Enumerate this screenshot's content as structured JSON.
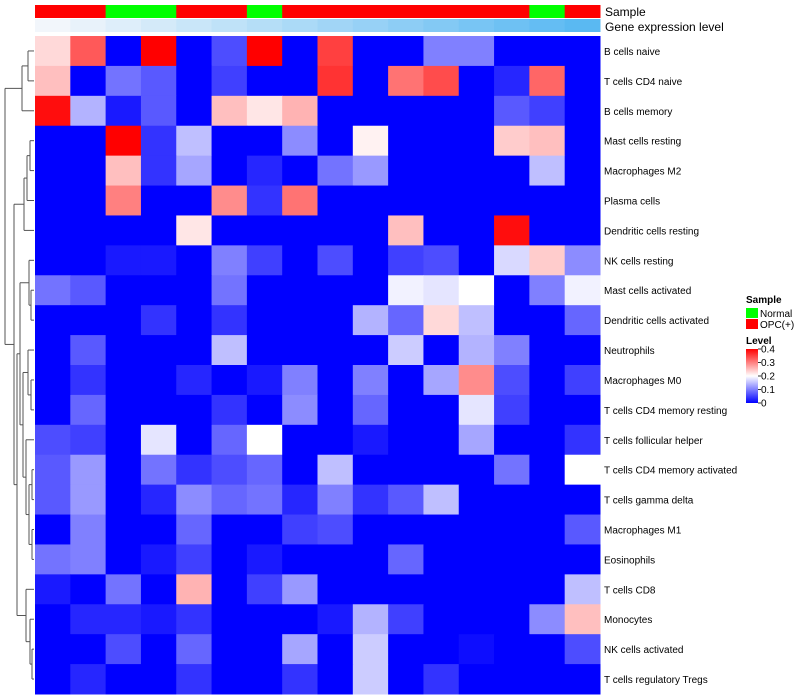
{
  "chart_data": {
    "type": "heatmap",
    "title": "",
    "annotation_labels": {
      "sample": "Sample",
      "gene_level": "Gene expression level"
    },
    "rows": [
      "B cells naive",
      "T cells CD4 naive",
      "B cells memory",
      "Mast cells resting",
      "Macrophages M2",
      "Plasma cells",
      "Dendritic cells resting",
      "NK cells resting",
      "Mast cells activated",
      "Dendritic cells activated",
      "Neutrophils",
      "Macrophages M0",
      "T cells CD4 memory resting",
      "T cells follicular helper",
      "T cells CD4 memory activated",
      "T cells gamma delta",
      "Macrophages M1",
      "Eosinophils",
      "T cells CD8",
      "Monocytes",
      "NK cells activated",
      "T cells regulatory  Tregs"
    ],
    "sample_groups": [
      "OPC(+)",
      "OPC(+)",
      "Normal",
      "Normal",
      "OPC(+)",
      "OPC(+)",
      "Normal",
      "OPC(+)",
      "OPC(+)",
      "OPC(+)",
      "OPC(+)",
      "OPC(+)",
      "OPC(+)",
      "OPC(+)",
      "Normal",
      "OPC(+)"
    ],
    "gene_expression_levels": [
      0.02,
      0.04,
      0.06,
      0.08,
      0.1,
      0.12,
      0.14,
      0.16,
      0.18,
      0.2,
      0.22,
      0.24,
      0.26,
      0.28,
      0.3,
      0.32
    ],
    "values": [
      [
        0.23,
        0.33,
        0.0,
        0.4,
        0.0,
        0.06,
        0.4,
        0.0,
        0.35,
        0.0,
        0.0,
        0.1,
        0.1,
        0.0,
        0.0,
        0.0
      ],
      [
        0.25,
        0.0,
        0.09,
        0.07,
        0.0,
        0.05,
        0.0,
        0.0,
        0.36,
        0.0,
        0.31,
        0.34,
        0.0,
        0.03,
        0.32,
        0.0
      ],
      [
        0.39,
        0.14,
        0.02,
        0.07,
        0.0,
        0.25,
        0.22,
        0.26,
        0.0,
        0.0,
        0.0,
        0.0,
        0.0,
        0.07,
        0.05,
        0.0
      ],
      [
        0.0,
        0.0,
        0.4,
        0.04,
        0.15,
        0.0,
        0.0,
        0.11,
        0.0,
        0.21,
        0.0,
        0.0,
        0.0,
        0.24,
        0.25,
        0.0
      ],
      [
        0.0,
        0.0,
        0.25,
        0.04,
        0.13,
        0.0,
        0.03,
        0.0,
        0.09,
        0.12,
        0.0,
        0.0,
        0.0,
        0.0,
        0.15,
        0.0
      ],
      [
        0.0,
        0.0,
        0.3,
        0.0,
        0.0,
        0.29,
        0.04,
        0.31,
        0.0,
        0.0,
        0.0,
        0.0,
        0.0,
        0.0,
        0.0,
        0.0
      ],
      [
        0.0,
        0.0,
        0.0,
        0.0,
        0.22,
        0.0,
        0.0,
        0.0,
        0.0,
        0.0,
        0.25,
        0.0,
        0.0,
        0.39,
        0.0,
        0.0
      ],
      [
        0.0,
        0.0,
        0.02,
        0.02,
        0.0,
        0.1,
        0.05,
        0.0,
        0.06,
        0.0,
        0.05,
        0.06,
        0.0,
        0.17,
        0.24,
        0.11
      ],
      [
        0.09,
        0.07,
        0.0,
        0.0,
        0.0,
        0.09,
        0.0,
        0.0,
        0.0,
        0.0,
        0.19,
        0.18,
        0.2,
        0.0,
        0.1,
        0.19
      ],
      [
        0.0,
        0.0,
        0.0,
        0.04,
        0.0,
        0.04,
        0.0,
        0.0,
        0.0,
        0.14,
        0.08,
        0.23,
        0.15,
        0.0,
        0.0,
        0.08
      ],
      [
        0.0,
        0.07,
        0.0,
        0.0,
        0.0,
        0.15,
        0.0,
        0.0,
        0.0,
        0.0,
        0.16,
        0.0,
        0.14,
        0.1,
        0.0,
        0.0
      ],
      [
        0.0,
        0.04,
        0.0,
        0.0,
        0.03,
        0.0,
        0.02,
        0.1,
        0.0,
        0.1,
        0.0,
        0.13,
        0.29,
        0.06,
        0.0,
        0.05
      ],
      [
        0.0,
        0.08,
        0.0,
        0.0,
        0.0,
        0.04,
        0.0,
        0.11,
        0.0,
        0.08,
        0.0,
        0.0,
        0.18,
        0.05,
        0.0,
        0.0
      ],
      [
        0.06,
        0.05,
        0.0,
        0.18,
        0.0,
        0.08,
        0.2,
        0.0,
        0.0,
        0.02,
        0.0,
        0.0,
        0.13,
        0.0,
        0.0,
        0.04
      ],
      [
        0.07,
        0.12,
        0.0,
        0.09,
        0.04,
        0.06,
        0.08,
        0.0,
        0.15,
        0.0,
        0.0,
        0.0,
        0.0,
        0.09,
        0.0,
        0.2
      ],
      [
        0.07,
        0.12,
        0.0,
        0.03,
        0.11,
        0.08,
        0.09,
        0.03,
        0.1,
        0.04,
        0.07,
        0.15,
        0.0,
        0.0,
        0.0,
        0.0
      ],
      [
        0.0,
        0.1,
        0.0,
        0.0,
        0.08,
        0.0,
        0.0,
        0.05,
        0.06,
        0.0,
        0.0,
        0.0,
        0.0,
        0.0,
        0.0,
        0.07
      ],
      [
        0.09,
        0.1,
        0.0,
        0.02,
        0.05,
        0.0,
        0.02,
        0.0,
        0.0,
        0.0,
        0.08,
        0.0,
        0.0,
        0.0,
        0.0,
        0.0
      ],
      [
        0.02,
        0.0,
        0.09,
        0.0,
        0.26,
        0.0,
        0.05,
        0.12,
        0.0,
        0.0,
        0.0,
        0.0,
        0.0,
        0.0,
        0.0,
        0.15
      ],
      [
        0.0,
        0.03,
        0.03,
        0.02,
        0.04,
        0.0,
        0.0,
        0.0,
        0.02,
        0.14,
        0.05,
        0.0,
        0.0,
        0.0,
        0.11,
        0.25
      ],
      [
        0.0,
        0.0,
        0.06,
        0.0,
        0.08,
        0.0,
        0.0,
        0.13,
        0.0,
        0.16,
        0.0,
        0.0,
        0.01,
        0.0,
        0.0,
        0.06
      ],
      [
        0.0,
        0.03,
        0.0,
        0.0,
        0.04,
        0.0,
        0.0,
        0.04,
        0.0,
        0.16,
        0.0,
        0.04,
        0.0,
        0.0,
        0.0,
        0.0
      ]
    ],
    "color_scale": {
      "low": "#0000ff",
      "mid": "#ffffff",
      "high": "#ff0000",
      "min": 0,
      "mid_value": 0.2,
      "max": 0.4
    },
    "sample_legend": {
      "title": "Sample",
      "entries": [
        {
          "label": "Normal",
          "color": "#00ff00"
        },
        {
          "label": "OPC(+)",
          "color": "#ff0000"
        }
      ]
    },
    "level_legend": {
      "title": "Level",
      "ticks": [
        "0.4",
        "0.3",
        "0.2",
        "0.1",
        "0"
      ],
      "tick_values": [
        0.4,
        0.3,
        0.2,
        0.1,
        0
      ]
    },
    "gene_level_colors": {
      "low": "#f2f6fb",
      "high": "#5ab9f2"
    }
  }
}
